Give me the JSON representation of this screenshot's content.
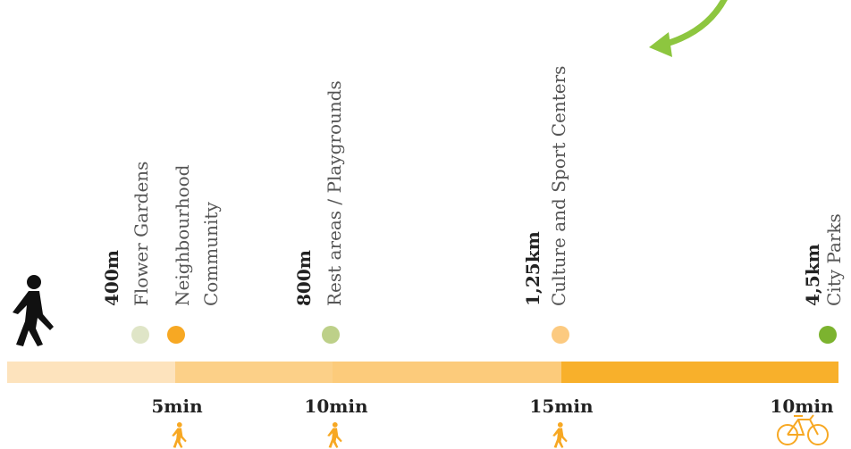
{
  "colors": {
    "arrow": "#8dc63f",
    "walker": "#111111",
    "orange_icon": "#f7a823",
    "bar_segments": [
      "#fde3bd",
      "#fcd088",
      "#fccb7b",
      "#f8b02b"
    ]
  },
  "milestones": [
    {
      "distance": "400m",
      "labels": [
        "Flower Gardens",
        "Neighbourhood",
        "Community"
      ],
      "dots": [
        "#dfe5c7",
        "#f7a823"
      ]
    },
    {
      "distance": "800m",
      "labels": [
        "Rest areas / Playgrounds"
      ],
      "dots": [
        "#bdd089"
      ]
    },
    {
      "distance": "1,25km",
      "labels": [
        "Culture and Sport Centers"
      ],
      "dots": [
        "#fcca80"
      ]
    },
    {
      "distance": "4,5km",
      "labels": [
        "City Parks"
      ],
      "dots": [
        "#7cb32f"
      ]
    }
  ],
  "times": [
    {
      "label": "5min",
      "icon": "walker-icon"
    },
    {
      "label": "10min",
      "icon": "walker-icon"
    },
    {
      "label": "15min",
      "icon": "walker-icon"
    },
    {
      "label": "10min",
      "icon": "bicycle-icon"
    }
  ]
}
